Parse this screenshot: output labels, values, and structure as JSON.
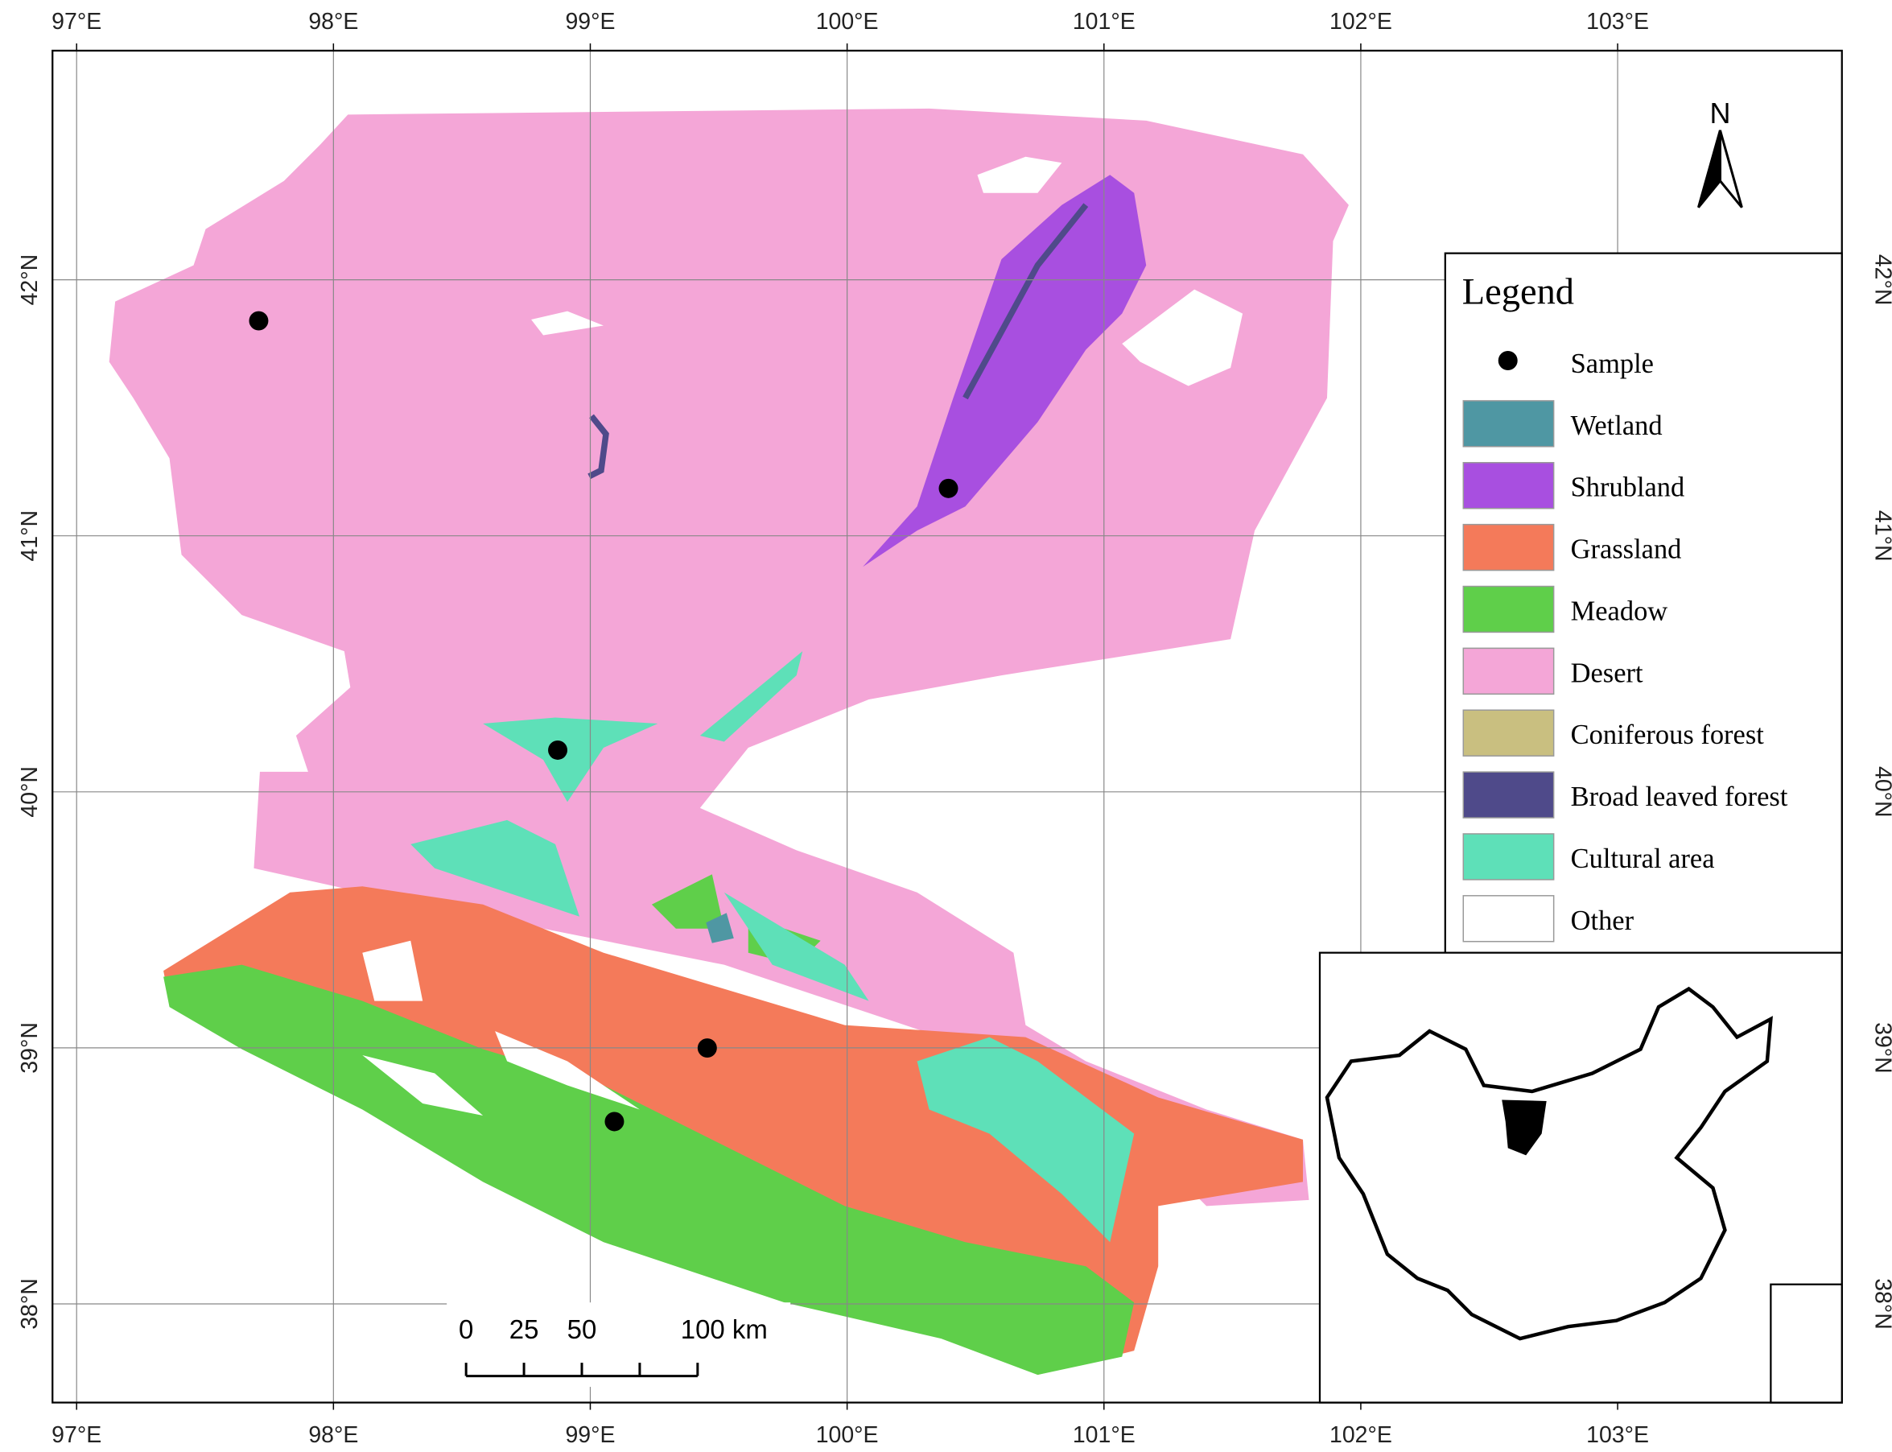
{
  "longitude_labels": [
    "97°E",
    "98°E",
    "99°E",
    "100°E",
    "101°E",
    "102°E",
    "103°E"
  ],
  "latitude_labels": [
    "42°N",
    "41°N",
    "40°N",
    "39°N",
    "38°N"
  ],
  "north_arrow": "N",
  "legend": {
    "title": "Legend",
    "items": [
      {
        "label": "Sample",
        "color": "#000000",
        "symbol": "point"
      },
      {
        "label": "Wetland",
        "color": "#4f97a3"
      },
      {
        "label": "Shrubland",
        "color": "#a84fe0"
      },
      {
        "label": "Grassland",
        "color": "#f47a5a"
      },
      {
        "label": "Meadow",
        "color": "#5fcf4a"
      },
      {
        "label": "Desert",
        "color": "#f4a6d7"
      },
      {
        "label": "Coniferous forest",
        "color": "#c9bf80"
      },
      {
        "label": "Broad leaved forest",
        "color": "#4f4a8a"
      },
      {
        "label": "Cultural area",
        "color": "#5ee0b8"
      },
      {
        "label": "Other",
        "color": "#ffffff"
      }
    ]
  },
  "scale_bar": {
    "labels": [
      "0",
      "25",
      "50",
      "100 km"
    ]
  }
}
